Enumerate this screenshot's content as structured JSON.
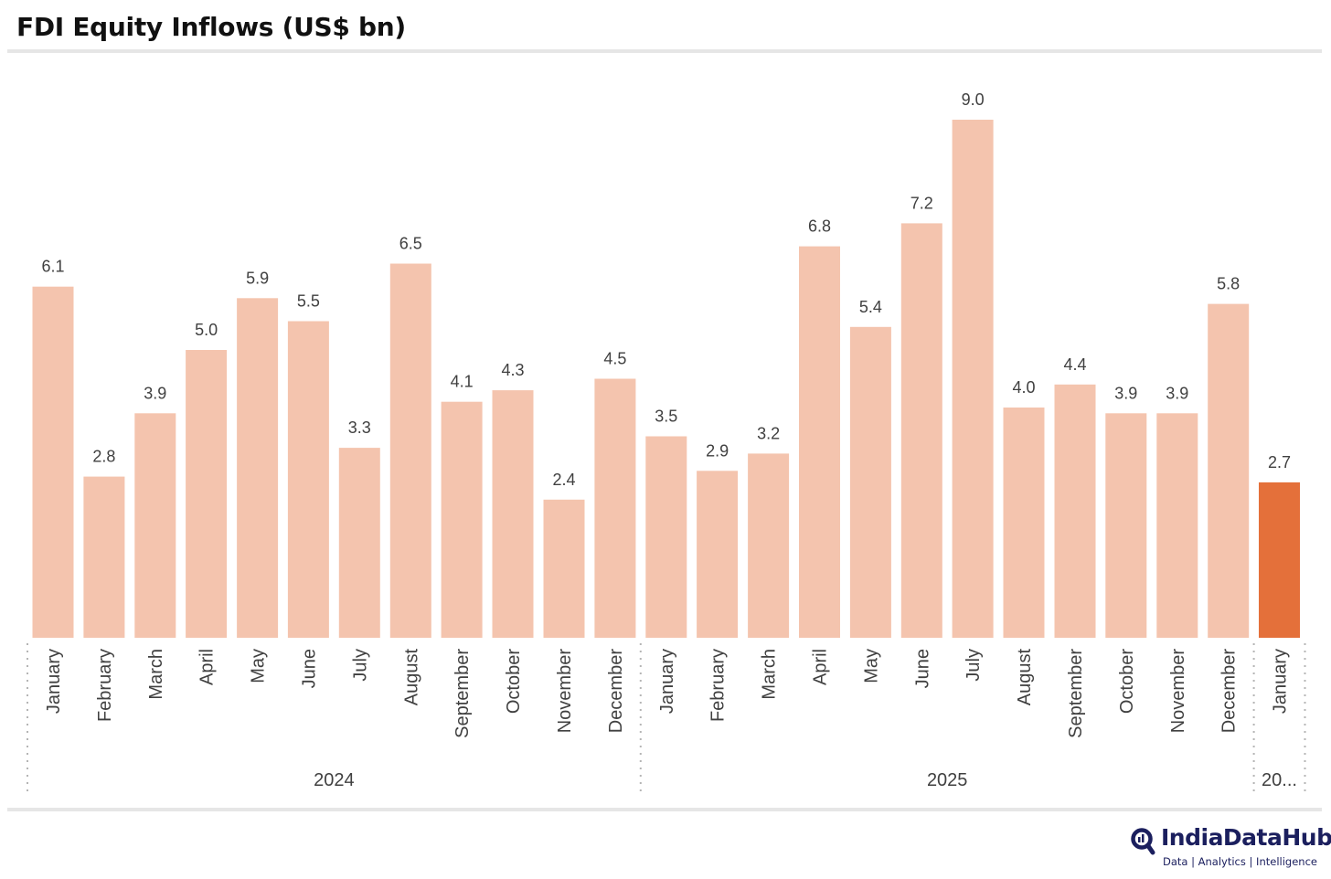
{
  "chart_data": {
    "type": "bar",
    "title": "FDI Equity Inflows (US$ bn)",
    "xlabel": "",
    "ylabel": "",
    "ylim": [
      0,
      9
    ],
    "grid": false,
    "categories": [
      "January",
      "February",
      "March",
      "April",
      "May",
      "June",
      "July",
      "August",
      "September",
      "October",
      "November",
      "December",
      "January",
      "February",
      "March",
      "April",
      "May",
      "June",
      "July",
      "August",
      "September",
      "October",
      "November",
      "December",
      "January"
    ],
    "values": [
      6.1,
      2.8,
      3.9,
      5.0,
      5.9,
      5.5,
      3.3,
      6.5,
      4.1,
      4.3,
      2.4,
      4.5,
      3.5,
      2.9,
      3.2,
      6.8,
      5.4,
      7.2,
      9.0,
      4.0,
      4.4,
      3.9,
      3.9,
      5.8,
      2.7
    ],
    "value_labels": [
      "6.1",
      "2.8",
      "3.9",
      "5.0",
      "5.9",
      "5.5",
      "3.3",
      "6.5",
      "4.1",
      "4.3",
      "2.4",
      "4.5",
      "3.5",
      "2.9",
      "3.2",
      "6.8",
      "5.4",
      "7.2",
      "9.0",
      "4.0",
      "4.4",
      "3.9",
      "3.9",
      "5.8",
      "2.7"
    ],
    "year_groups": [
      {
        "label": "2024",
        "count": 12
      },
      {
        "label": "2025",
        "count": 12
      },
      {
        "label": "20...",
        "count": 1
      }
    ],
    "highlight_index": 24,
    "colors": {
      "bar": "#f4c4ae",
      "highlight": "#e4703a",
      "label": "#404040",
      "separator": "#b5b5b5"
    }
  },
  "brand": {
    "name": "IndiaDataHub",
    "tagline": "Data | Analytics | Intelligence",
    "color": "#1b1f5e",
    "icon": "magnifier-logo-icon"
  }
}
